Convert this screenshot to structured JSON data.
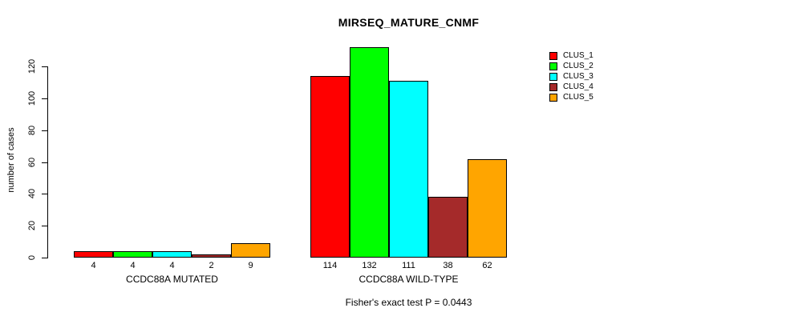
{
  "chart_data": {
    "type": "bar",
    "title": "MIRSEQ_MATURE_CNMF",
    "ylabel": "number of cases",
    "xlabel": "",
    "yticks": [
      0,
      20,
      40,
      60,
      80,
      100,
      120
    ],
    "ylim": [
      0,
      133
    ],
    "grid": false,
    "legend_position": "right",
    "bar_value_labels_shown": true,
    "categories": [
      "CCDC88A MUTATED",
      "CCDC88A WILD-TYPE"
    ],
    "series": [
      {
        "name": "CLUS_1",
        "color": "#FF0000",
        "values": [
          4,
          114
        ]
      },
      {
        "name": "CLUS_2",
        "color": "#00FF00",
        "values": [
          4,
          132
        ]
      },
      {
        "name": "CLUS_3",
        "color": "#00FFFF",
        "values": [
          4,
          111
        ]
      },
      {
        "name": "CLUS_4",
        "color": "#A52A2A",
        "values": [
          2,
          38
        ]
      },
      {
        "name": "CLUS_5",
        "color": "#FFA500",
        "values": [
          9,
          62
        ]
      }
    ],
    "footnote": "Fisher's exact test P = 0.0443",
    "colors": {
      "bar_border": "#000000",
      "axis": "#000000",
      "text": "#000000",
      "background": "#FFFFFF"
    }
  }
}
